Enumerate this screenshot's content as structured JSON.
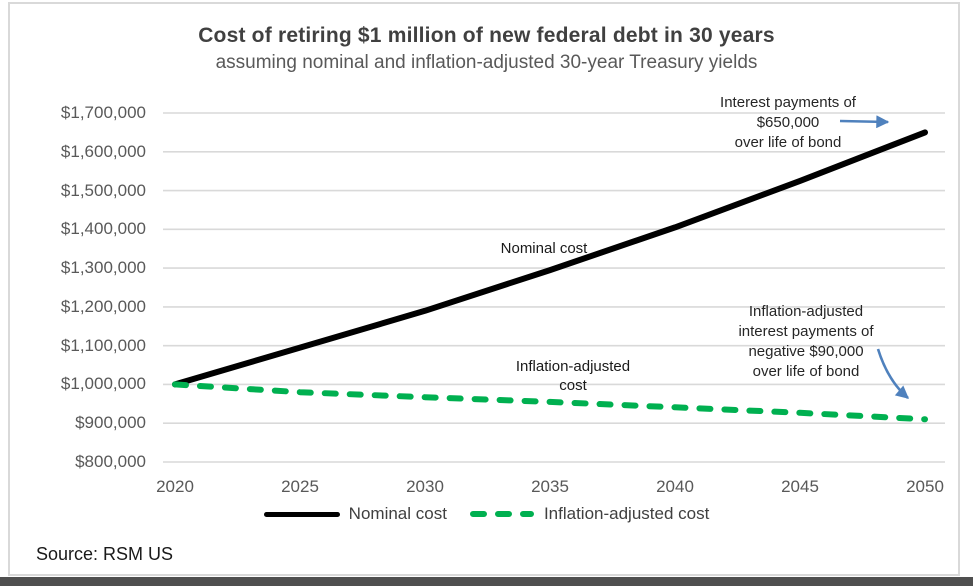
{
  "header": {
    "title": "Cost of retiring $1 million of new federal debt in 30 years",
    "subtitle": "assuming nominal and inflation-adjusted 30-year Treasury yields"
  },
  "source": {
    "text": "Source: RSM US"
  },
  "series_labels": {
    "nominal": "Nominal cost",
    "inflation_line1": "Inflation-adjusted",
    "inflation_line2": "cost"
  },
  "notes": {
    "interest": [
      "Interest payments of",
      "$650,000",
      "over life of bond"
    ],
    "inflation": [
      "Inflation-adjusted",
      "interest payments of",
      "negative $90,000",
      "over life of bond"
    ]
  },
  "legend": {
    "items": [
      {
        "label": "Nominal cost"
      },
      {
        "label": "Inflation-adjusted cost"
      }
    ]
  },
  "axes": {
    "y_labels": [
      "$1,700,000",
      "$1,600,000",
      "$1,500,000",
      "$1,400,000",
      "$1,300,000",
      "$1,200,000",
      "$1,100,000",
      "$1,000,000",
      "$900,000",
      "$800,000"
    ],
    "x_labels": [
      "2020",
      "2025",
      "2030",
      "2035",
      "2040",
      "2045",
      "2050"
    ]
  },
  "colors": {
    "nominal_line": "#000000",
    "inflation_line": "#00B050",
    "arrow": "#4f81bd",
    "gridline": "#d9d9d9",
    "axis_text": "#595959",
    "title_text": "#404040",
    "bottom_bar": "#4f4f4f"
  },
  "chart_data": {
    "type": "line",
    "title": "Cost of retiring $1 million of new federal debt in 30 years",
    "subtitle": "assuming nominal and inflation-adjusted 30-year Treasury yields",
    "x": [
      2020,
      2025,
      2030,
      2035,
      2040,
      2045,
      2050
    ],
    "series": [
      {
        "name": "Nominal cost",
        "color": "#000000",
        "style": "solid",
        "values": [
          1000000,
          1095000,
          1190000,
          1295000,
          1405000,
          1525000,
          1650000
        ]
      },
      {
        "name": "Inflation-adjusted cost",
        "color": "#00B050",
        "style": "dashed",
        "values": [
          1000000,
          980000,
          967000,
          955000,
          941000,
          927000,
          910000
        ]
      }
    ],
    "xlabel": "",
    "ylabel": "",
    "xlim": [
      2020,
      2050
    ],
    "ylim": [
      800000,
      1700000
    ],
    "ytick_step": 100000,
    "grid": true,
    "legend_position": "bottom",
    "annotations": [
      {
        "text": "Interest payments of $650,000 over life of bond",
        "points_to": "end of Nominal cost line (2050, 1650000)"
      },
      {
        "text": "Inflation-adjusted interest payments of negative $90,000 over life of bond",
        "points_to": "end of Inflation-adjusted cost line (2050, 910000)"
      }
    ]
  }
}
